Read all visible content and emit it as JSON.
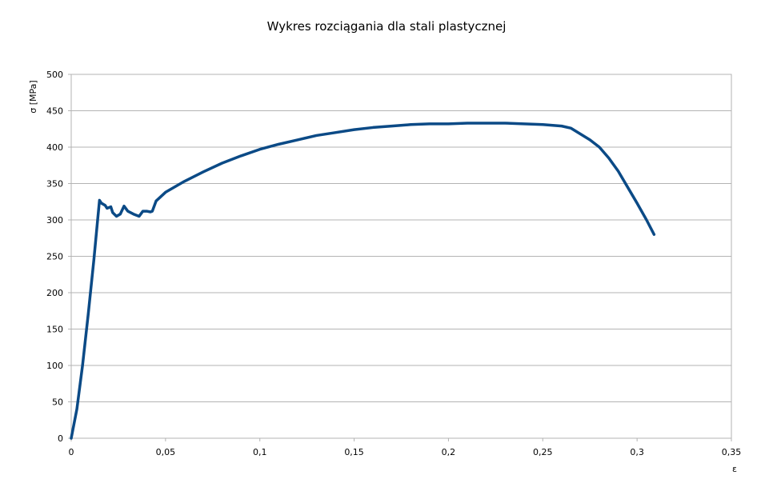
{
  "chart_data": {
    "type": "line",
    "title": "Wykres rozciągania dla stali plastycznej",
    "xlabel": "ε",
    "ylabel": "σ [MPa]",
    "xlim": [
      0,
      0.35
    ],
    "ylim": [
      0,
      500
    ],
    "grid": "horizontal",
    "line_color": "#0b4a86",
    "x_ticks": [
      "0",
      "0,05",
      "0,1",
      "0,15",
      "0,2",
      "0,25",
      "0,3",
      "0,35"
    ],
    "x_tick_values": [
      0,
      0.05,
      0.1,
      0.15,
      0.2,
      0.25,
      0.3,
      0.35
    ],
    "y_ticks": [
      "0",
      "50",
      "100",
      "150",
      "200",
      "250",
      "300",
      "350",
      "400",
      "450",
      "500"
    ],
    "y_tick_values": [
      0,
      50,
      100,
      150,
      200,
      250,
      300,
      350,
      400,
      450,
      500
    ],
    "series": [
      {
        "points": [
          [
            0.0,
            0
          ],
          [
            0.003,
            40
          ],
          [
            0.006,
            100
          ],
          [
            0.009,
            170
          ],
          [
            0.012,
            245
          ],
          [
            0.014,
            300
          ],
          [
            0.015,
            327
          ],
          [
            0.016,
            323
          ],
          [
            0.018,
            320
          ],
          [
            0.019,
            316
          ],
          [
            0.021,
            318
          ],
          [
            0.022,
            310
          ],
          [
            0.024,
            305
          ],
          [
            0.026,
            308
          ],
          [
            0.028,
            319
          ],
          [
            0.03,
            312
          ],
          [
            0.033,
            308
          ],
          [
            0.036,
            305
          ],
          [
            0.038,
            312
          ],
          [
            0.04,
            312
          ],
          [
            0.042,
            311
          ],
          [
            0.043,
            312
          ],
          [
            0.045,
            326
          ],
          [
            0.05,
            338
          ],
          [
            0.06,
            353
          ],
          [
            0.07,
            366
          ],
          [
            0.08,
            378
          ],
          [
            0.09,
            388
          ],
          [
            0.1,
            397
          ],
          [
            0.11,
            404
          ],
          [
            0.12,
            410
          ],
          [
            0.13,
            416
          ],
          [
            0.14,
            420
          ],
          [
            0.15,
            424
          ],
          [
            0.16,
            427
          ],
          [
            0.17,
            429
          ],
          [
            0.18,
            431
          ],
          [
            0.19,
            432
          ],
          [
            0.2,
            432
          ],
          [
            0.21,
            433
          ],
          [
            0.22,
            433
          ],
          [
            0.23,
            433
          ],
          [
            0.24,
            432
          ],
          [
            0.25,
            431
          ],
          [
            0.26,
            429
          ],
          [
            0.265,
            426
          ],
          [
            0.27,
            418
          ],
          [
            0.275,
            410
          ],
          [
            0.28,
            400
          ],
          [
            0.285,
            385
          ],
          [
            0.29,
            367
          ],
          [
            0.295,
            345
          ],
          [
            0.3,
            323
          ],
          [
            0.305,
            300
          ],
          [
            0.309,
            280
          ]
        ]
      }
    ]
  }
}
